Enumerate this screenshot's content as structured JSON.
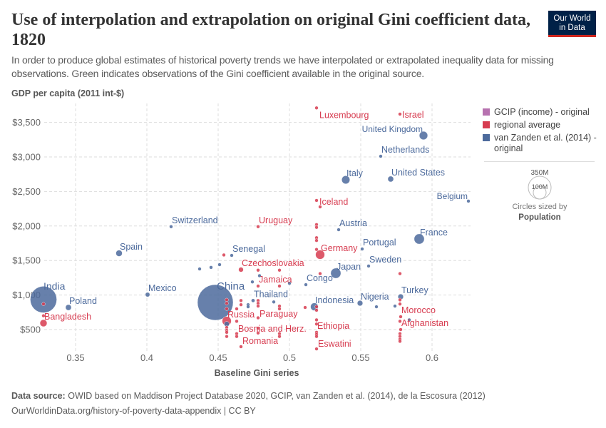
{
  "header": {
    "title": "Use of interpolation and extrapolation on original Gini coefficient data, 1820",
    "subtitle": "In order to produce global estimates of historical poverty trends we have interpolated or extrapolated inequality data for missing observations. Green indicates observations of the Gini coefficient available in the original source.",
    "logo_line1": "Our World",
    "logo_line2": "in Data"
  },
  "footer": {
    "source_label": "Data source:",
    "source": "OWID based on Maddison Project Database 2020, GCIP, van Zanden et al. (2014), de la Escosura (2012)",
    "url": "OurWorldinData.org/history-of-poverty-data-appendix | CC BY"
  },
  "legend": {
    "items": [
      {
        "label": "GCIP (income) - original",
        "color": "#B772B0"
      },
      {
        "label": "regional average",
        "color": "#D73C50"
      },
      {
        "label": "van Zanden et al. (2014) - original",
        "color": "#4C6A9C"
      }
    ],
    "size_big": "350M",
    "size_small": "100M",
    "size_caption": "Circles sized by",
    "size_variable": "Population"
  },
  "chart_data": {
    "type": "scatter",
    "xlabel": "Baseline Gini series",
    "ylabel": "GDP per capita (2011 int-$)",
    "xlim": [
      0.325,
      0.625
    ],
    "ylim": [
      200,
      3750
    ],
    "xticks": [
      {
        "v": 0.35,
        "label": "0.35"
      },
      {
        "v": 0.4,
        "label": "0.4"
      },
      {
        "v": 0.45,
        "label": "0.45"
      },
      {
        "v": 0.5,
        "label": "0.5"
      },
      {
        "v": 0.55,
        "label": "0.55"
      },
      {
        "v": 0.6,
        "label": "0.6"
      }
    ],
    "yticks": [
      {
        "v": 500,
        "label": "$500"
      },
      {
        "v": 1000,
        "label": "$1,000"
      },
      {
        "v": 1500,
        "label": "$1,500"
      },
      {
        "v": 2000,
        "label": "$2,000"
      },
      {
        "v": 2500,
        "label": "$2,500"
      },
      {
        "v": 3000,
        "label": "$3,000"
      },
      {
        "v": 3500,
        "label": "$3,500"
      }
    ],
    "grid": true,
    "legend_position": "right",
    "colors": {
      "van_zanden": "#4C6A9C",
      "regional": "#D73C50",
      "gcip": "#B772B0"
    },
    "points": [
      {
        "name": "India",
        "x": 0.3275,
        "y": 935,
        "pop": 210,
        "group": "van_zanden"
      },
      {
        "name": "Poland",
        "x": 0.345,
        "y": 820,
        "pop": 10,
        "group": "van_zanden"
      },
      {
        "name": "Spain",
        "x": 0.3805,
        "y": 1605,
        "pop": 12,
        "group": "van_zanden"
      },
      {
        "name": "Mexico",
        "x": 0.4005,
        "y": 1006,
        "pop": 6,
        "group": "van_zanden"
      },
      {
        "name": "Switzerland",
        "x": 0.417,
        "y": 1990,
        "pop": 2,
        "group": "van_zanden"
      },
      {
        "name": "China",
        "x": 0.448,
        "y": 893,
        "pop": 380,
        "group": "van_zanden"
      },
      {
        "name": "Senegal",
        "x": 0.4595,
        "y": 1574,
        "pop": 2,
        "group": "van_zanden"
      },
      {
        "name": "Thailand",
        "x": 0.4745,
        "y": 920,
        "pop": 4,
        "group": "van_zanden"
      },
      {
        "name": "Congo",
        "x": 0.5115,
        "y": 1150,
        "pop": 3,
        "group": "van_zanden"
      },
      {
        "name": "Indonesia",
        "x": 0.5175,
        "y": 830,
        "pop": 18,
        "group": "van_zanden"
      },
      {
        "name": "Japan",
        "x": 0.5325,
        "y": 1316,
        "pop": 31,
        "group": "van_zanden"
      },
      {
        "name": "Nigeria",
        "x": 0.5495,
        "y": 882,
        "pop": 9,
        "group": "van_zanden"
      },
      {
        "name": "Sweden",
        "x": 0.5555,
        "y": 1420,
        "pop": 2,
        "group": "van_zanden"
      },
      {
        "name": "Portugal",
        "x": 0.551,
        "y": 1667,
        "pop": 3,
        "group": "van_zanden"
      },
      {
        "name": "Austria",
        "x": 0.5345,
        "y": 1946,
        "pop": 3,
        "group": "van_zanden"
      },
      {
        "name": "France",
        "x": 0.591,
        "y": 1812,
        "pop": 31,
        "group": "van_zanden"
      },
      {
        "name": "Belgium",
        "x": 0.6255,
        "y": 2360,
        "pop": 3,
        "group": "van_zanden"
      },
      {
        "name": "Italy",
        "x": 0.5395,
        "y": 2669,
        "pop": 20,
        "group": "van_zanden"
      },
      {
        "name": "United States",
        "x": 0.571,
        "y": 2680,
        "pop": 10,
        "group": "van_zanden"
      },
      {
        "name": "Netherlands",
        "x": 0.564,
        "y": 3010,
        "pop": 2,
        "group": "van_zanden"
      },
      {
        "name": "United Kingdom",
        "x": 0.594,
        "y": 3310,
        "pop": 21,
        "group": "van_zanden"
      },
      {
        "name": "Turkey",
        "x": 0.578,
        "y": 975,
        "pop": 9,
        "group": "van_zanden"
      },
      {
        "name": "",
        "x": 0.437,
        "y": 1378,
        "pop": 2,
        "group": "van_zanden"
      },
      {
        "name": "",
        "x": 0.445,
        "y": 1400,
        "pop": 2,
        "group": "van_zanden"
      },
      {
        "name": "",
        "x": 0.451,
        "y": 1440,
        "pop": 2,
        "group": "van_zanden"
      },
      {
        "name": "",
        "x": 0.479,
        "y": 1280,
        "pop": 2,
        "group": "van_zanden"
      },
      {
        "name": "",
        "x": 0.474,
        "y": 1190,
        "pop": 2,
        "group": "van_zanden"
      },
      {
        "name": "",
        "x": 0.471,
        "y": 860,
        "pop": 2,
        "group": "van_zanden"
      },
      {
        "name": "",
        "x": 0.471,
        "y": 830,
        "pop": 2,
        "group": "van_zanden"
      },
      {
        "name": "",
        "x": 0.489,
        "y": 900,
        "pop": 2,
        "group": "van_zanden"
      },
      {
        "name": "",
        "x": 0.5,
        "y": 1170,
        "pop": 2,
        "group": "van_zanden"
      },
      {
        "name": "",
        "x": 0.561,
        "y": 830,
        "pop": 2,
        "group": "van_zanden"
      },
      {
        "name": "",
        "x": 0.574,
        "y": 840,
        "pop": 2,
        "group": "van_zanden"
      },
      {
        "name": "",
        "x": 0.584,
        "y": 640,
        "pop": 2,
        "group": "van_zanden"
      },
      {
        "name": "",
        "x": 0.456,
        "y": 580,
        "pop": 8,
        "group": "van_zanden"
      },
      {
        "name": "Luxembourg",
        "x": 0.519,
        "y": 3710,
        "pop": 1,
        "group": "regional"
      },
      {
        "name": "Israel",
        "x": 0.5775,
        "y": 3620,
        "pop": 1,
        "group": "regional"
      },
      {
        "name": "Iceland",
        "x": 0.519,
        "y": 2370,
        "pop": 1,
        "group": "regional"
      },
      {
        "name": "Uruguay",
        "x": 0.478,
        "y": 1990,
        "pop": 1,
        "group": "regional"
      },
      {
        "name": "Germany",
        "x": 0.5215,
        "y": 1585,
        "pop": 25,
        "group": "regional"
      },
      {
        "name": "Czechoslovakia",
        "x": 0.466,
        "y": 1368,
        "pop": 7,
        "group": "regional"
      },
      {
        "name": "Jamaica",
        "x": 0.478,
        "y": 1130,
        "pop": 1,
        "group": "regional"
      },
      {
        "name": "Russia",
        "x": 0.456,
        "y": 624,
        "pop": 25,
        "group": "regional"
      },
      {
        "name": "Paraguay",
        "x": 0.478,
        "y": 520,
        "pop": 1,
        "group": "regional"
      },
      {
        "name": "Bosnia and Herz.",
        "x": 0.463,
        "y": 440,
        "pop": 1,
        "group": "regional"
      },
      {
        "name": "Romania",
        "x": 0.466,
        "y": 252,
        "pop": 3,
        "group": "regional"
      },
      {
        "name": "Bangladesh",
        "x": 0.3275,
        "y": 593,
        "pop": 15,
        "group": "regional"
      },
      {
        "name": "Ethiopia",
        "x": 0.519,
        "y": 460,
        "pop": 3,
        "group": "regional"
      },
      {
        "name": "Eswatini",
        "x": 0.519,
        "y": 220,
        "pop": 1,
        "group": "regional"
      },
      {
        "name": "Morocco",
        "x": 0.578,
        "y": 686,
        "pop": 2,
        "group": "regional"
      },
      {
        "name": "Afghanistan",
        "x": 0.578,
        "y": 500,
        "pop": 3,
        "group": "regional"
      },
      {
        "name": "",
        "x": 0.3275,
        "y": 870,
        "pop": 1,
        "group": "regional"
      },
      {
        "name": "",
        "x": 0.3275,
        "y": 700,
        "pop": 1,
        "group": "regional"
      },
      {
        "name": "",
        "x": 0.456,
        "y": 930,
        "pop": 1,
        "group": "regional"
      },
      {
        "name": "",
        "x": 0.456,
        "y": 880,
        "pop": 1,
        "group": "regional"
      },
      {
        "name": "",
        "x": 0.456,
        "y": 800,
        "pop": 1,
        "group": "regional"
      },
      {
        "name": "",
        "x": 0.456,
        "y": 530,
        "pop": 1,
        "group": "regional"
      },
      {
        "name": "",
        "x": 0.456,
        "y": 490,
        "pop": 1,
        "group": "regional"
      },
      {
        "name": "",
        "x": 0.456,
        "y": 460,
        "pop": 1,
        "group": "regional"
      },
      {
        "name": "",
        "x": 0.456,
        "y": 400,
        "pop": 2,
        "group": "regional"
      },
      {
        "name": "",
        "x": 0.463,
        "y": 800,
        "pop": 1,
        "group": "regional"
      },
      {
        "name": "",
        "x": 0.463,
        "y": 620,
        "pop": 1,
        "group": "regional"
      },
      {
        "name": "",
        "x": 0.463,
        "y": 400,
        "pop": 1,
        "group": "regional"
      },
      {
        "name": "",
        "x": 0.466,
        "y": 920,
        "pop": 1,
        "group": "regional"
      },
      {
        "name": "",
        "x": 0.466,
        "y": 860,
        "pop": 1,
        "group": "regional"
      },
      {
        "name": "",
        "x": 0.454,
        "y": 1580,
        "pop": 1,
        "group": "regional"
      },
      {
        "name": "",
        "x": 0.478,
        "y": 1360,
        "pop": 1,
        "group": "regional"
      },
      {
        "name": "",
        "x": 0.478,
        "y": 920,
        "pop": 1,
        "group": "regional"
      },
      {
        "name": "",
        "x": 0.478,
        "y": 880,
        "pop": 1,
        "group": "regional"
      },
      {
        "name": "",
        "x": 0.478,
        "y": 840,
        "pop": 1,
        "group": "regional"
      },
      {
        "name": "",
        "x": 0.478,
        "y": 670,
        "pop": 1,
        "group": "regional"
      },
      {
        "name": "",
        "x": 0.478,
        "y": 450,
        "pop": 1,
        "group": "regional"
      },
      {
        "name": "",
        "x": 0.493,
        "y": 1360,
        "pop": 1,
        "group": "regional"
      },
      {
        "name": "",
        "x": 0.493,
        "y": 1130,
        "pop": 1,
        "group": "regional"
      },
      {
        "name": "",
        "x": 0.493,
        "y": 840,
        "pop": 3,
        "group": "regional"
      },
      {
        "name": "",
        "x": 0.493,
        "y": 800,
        "pop": 2,
        "group": "regional"
      },
      {
        "name": "",
        "x": 0.493,
        "y": 440,
        "pop": 1,
        "group": "regional"
      },
      {
        "name": "",
        "x": 0.493,
        "y": 400,
        "pop": 1,
        "group": "regional"
      },
      {
        "name": "",
        "x": 0.511,
        "y": 820,
        "pop": 1,
        "group": "regional"
      },
      {
        "name": "",
        "x": 0.5215,
        "y": 2277,
        "pop": 1,
        "group": "regional"
      },
      {
        "name": "",
        "x": 0.519,
        "y": 2020,
        "pop": 1,
        "group": "regional"
      },
      {
        "name": "",
        "x": 0.519,
        "y": 1980,
        "pop": 1,
        "group": "regional"
      },
      {
        "name": "",
        "x": 0.519,
        "y": 1830,
        "pop": 1,
        "group": "regional"
      },
      {
        "name": "",
        "x": 0.519,
        "y": 1790,
        "pop": 1,
        "group": "regional"
      },
      {
        "name": "",
        "x": 0.519,
        "y": 1660,
        "pop": 1,
        "group": "regional"
      },
      {
        "name": "",
        "x": 0.5215,
        "y": 1310,
        "pop": 1,
        "group": "regional"
      },
      {
        "name": "",
        "x": 0.519,
        "y": 830,
        "pop": 1,
        "group": "regional"
      },
      {
        "name": "",
        "x": 0.519,
        "y": 780,
        "pop": 1,
        "group": "regional"
      },
      {
        "name": "",
        "x": 0.519,
        "y": 640,
        "pop": 1,
        "group": "regional"
      },
      {
        "name": "",
        "x": 0.519,
        "y": 580,
        "pop": 1,
        "group": "regional"
      },
      {
        "name": "",
        "x": 0.519,
        "y": 430,
        "pop": 1,
        "group": "regional"
      },
      {
        "name": "",
        "x": 0.519,
        "y": 400,
        "pop": 1,
        "group": "regional"
      },
      {
        "name": "",
        "x": 0.5775,
        "y": 1310,
        "pop": 1,
        "group": "regional"
      },
      {
        "name": "",
        "x": 0.5775,
        "y": 930,
        "pop": 2,
        "group": "regional"
      },
      {
        "name": "",
        "x": 0.5775,
        "y": 870,
        "pop": 2,
        "group": "regional"
      },
      {
        "name": "",
        "x": 0.5775,
        "y": 620,
        "pop": 1,
        "group": "regional"
      },
      {
        "name": "",
        "x": 0.5775,
        "y": 440,
        "pop": 1,
        "group": "regional"
      },
      {
        "name": "",
        "x": 0.5775,
        "y": 400,
        "pop": 1,
        "group": "regional"
      },
      {
        "name": "",
        "x": 0.5775,
        "y": 360,
        "pop": 1,
        "group": "regional"
      },
      {
        "name": "",
        "x": 0.5775,
        "y": 330,
        "pop": 1,
        "group": "regional"
      }
    ]
  }
}
